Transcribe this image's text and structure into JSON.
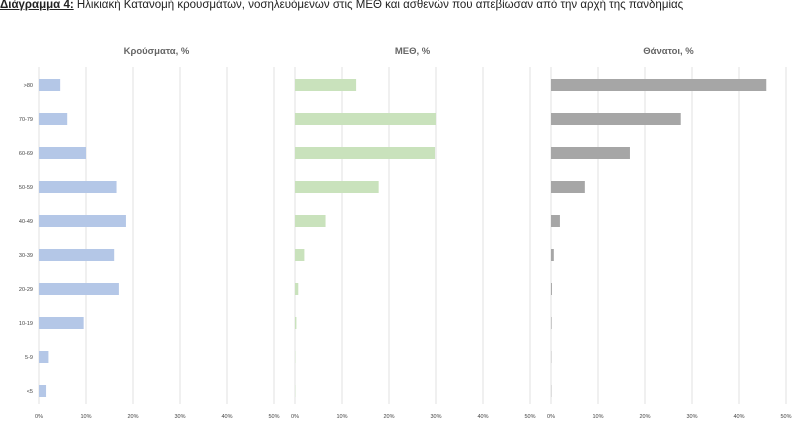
{
  "figure": {
    "label": "Διάγραμμα 4:",
    "title": "Ηλικιακή Κατανομή κρουσμάτων, νοσηλευόμενων στις ΜΕΘ και ασθενών που απεβίωσαν από την αρχή της πανδημίας"
  },
  "chart_data": [
    {
      "type": "bar",
      "orientation": "horizontal",
      "title": "Κρούσματα, %",
      "categories": [
        ">80",
        "70-79",
        "60-69",
        "50-59",
        "40-49",
        "30-39",
        "20-29",
        "10-19",
        "5-9",
        "<5"
      ],
      "values": [
        4.5,
        6,
        10,
        16.5,
        18.5,
        16,
        17,
        9.5,
        2,
        1.5
      ],
      "xlim": [
        0,
        50
      ],
      "xticks": [
        "0%",
        "10%",
        "20%",
        "30%",
        "40%",
        "50%"
      ],
      "grid": true,
      "color": "#b4c7e7"
    },
    {
      "type": "bar",
      "orientation": "horizontal",
      "title": "ΜΕΘ, %",
      "categories": [
        ">80",
        "70-79",
        "60-69",
        "50-59",
        "40-49",
        "30-39",
        "20-29",
        "10-19",
        "5-9",
        "<5"
      ],
      "values": [
        13,
        30,
        29.8,
        17.8,
        6.5,
        2,
        0.7,
        0.3,
        0,
        0
      ],
      "xlim": [
        0,
        50
      ],
      "xticks": [
        "0%",
        "10%",
        "20%",
        "30%",
        "40%",
        "50%"
      ],
      "grid": true,
      "color": "#c9e2bc"
    },
    {
      "type": "bar",
      "orientation": "horizontal",
      "title": "Θάνατοι, %",
      "categories": [
        ">80",
        "70-79",
        "60-69",
        "50-59",
        "40-49",
        "30-39",
        "20-29",
        "10-19",
        "5-9",
        "<5"
      ],
      "values": [
        45.8,
        27.6,
        16.8,
        7.2,
        1.9,
        0.6,
        0.2,
        0.1,
        0,
        0
      ],
      "xlim": [
        0,
        50
      ],
      "xticks": [
        "0%",
        "10%",
        "20%",
        "30%",
        "40%",
        "50%"
      ],
      "grid": true,
      "color": "#a6a6a6"
    }
  ]
}
